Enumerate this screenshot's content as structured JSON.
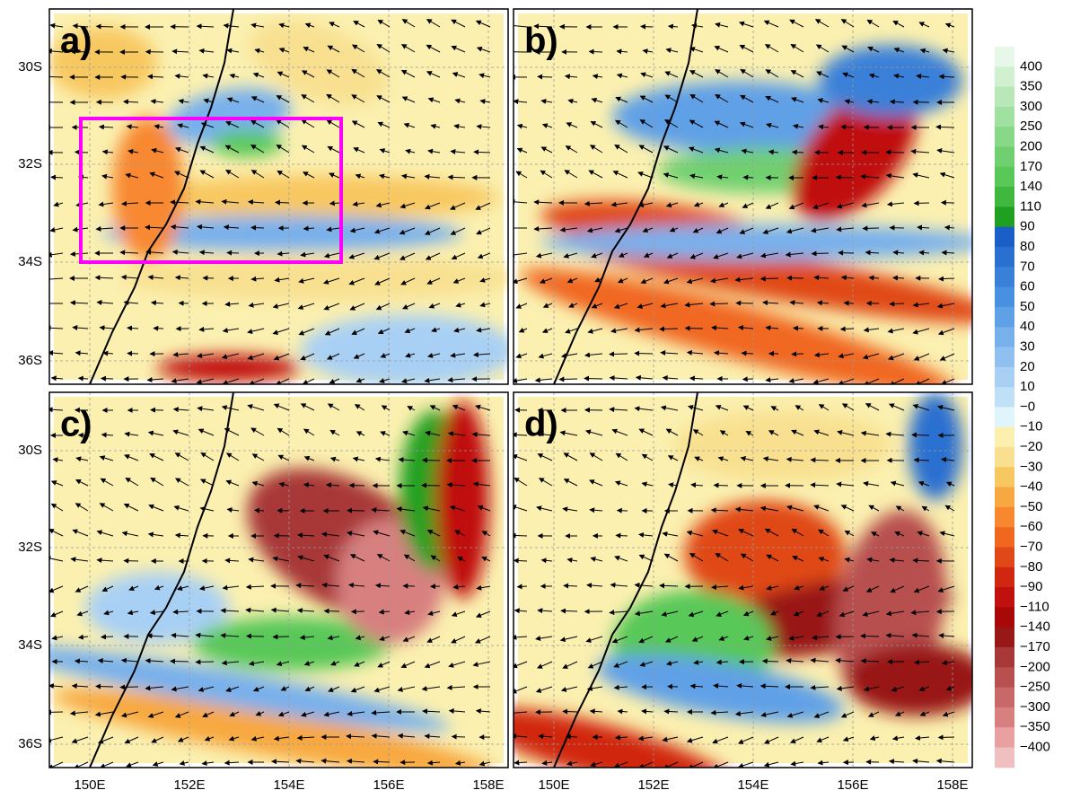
{
  "panels": [
    {
      "label": "a)"
    },
    {
      "label": "b)"
    },
    {
      "label": "c)"
    },
    {
      "label": "d)"
    }
  ],
  "lat_labels": [
    "30S",
    "32S",
    "34S",
    "36S"
  ],
  "lon_labels": [
    "150E",
    "152E",
    "154E",
    "156E",
    "158E"
  ],
  "colorbar": {
    "labels": [
      "400",
      "350",
      "300",
      "250",
      "200",
      "170",
      "140",
      "110",
      "90",
      "80",
      "70",
      "60",
      "50",
      "40",
      "30",
      "20",
      "10",
      "−0",
      "−10",
      "−20",
      "−30",
      "−40",
      "−50",
      "−60",
      "−70",
      "−80",
      "−90",
      "−110",
      "−140",
      "−170",
      "−200",
      "−250",
      "−300",
      "−350",
      "−400"
    ],
    "colors": [
      "#e8f8e8",
      "#d0f0d0",
      "#b8e8b8",
      "#a0e0a0",
      "#88d888",
      "#70d070",
      "#58c858",
      "#40b840",
      "#20a020",
      "#1a5fc8",
      "#2a70d0",
      "#3a80d8",
      "#4a90e0",
      "#60a0e6",
      "#78b0ec",
      "#90c0f0",
      "#a8d0f4",
      "#c0e0f8",
      "#e0f4fc",
      "#fbf0b0",
      "#f8e090",
      "#f8c860",
      "#f8a840",
      "#f88830",
      "#f06820",
      "#e04818",
      "#d02810",
      "#c01010",
      "#a80808",
      "#981818",
      "#a83838",
      "#b85050",
      "#c86868",
      "#d88080",
      "#e8a0a0",
      "#f0c0c0"
    ]
  }
}
